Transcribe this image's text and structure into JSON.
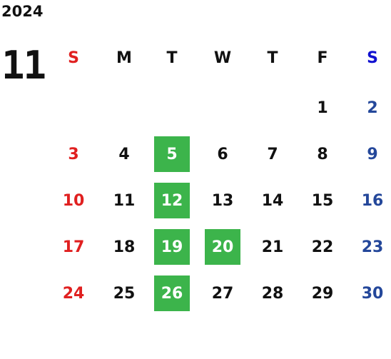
{
  "year": "2024",
  "month": "11",
  "weekdays": [
    "S",
    "M",
    "T",
    "W",
    "T",
    "F",
    "S"
  ],
  "weekday_colors": [
    "#e02020",
    "#111111",
    "#111111",
    "#111111",
    "#111111",
    "#111111",
    "#1010d0"
  ],
  "day_colors": [
    "#e02020",
    "#111111",
    "#111111",
    "#111111",
    "#111111",
    "#111111",
    "#24479a"
  ],
  "highlight_color": "#3cb44b",
  "weeks": [
    [
      null,
      null,
      null,
      null,
      null,
      {
        "day": "1"
      },
      {
        "day": "2"
      }
    ],
    [
      {
        "day": "3"
      },
      {
        "day": "4"
      },
      {
        "day": "5",
        "highlight": true
      },
      {
        "day": "6"
      },
      {
        "day": "7"
      },
      {
        "day": "8"
      },
      {
        "day": "9"
      }
    ],
    [
      {
        "day": "10"
      },
      {
        "day": "11"
      },
      {
        "day": "12",
        "highlight": true
      },
      {
        "day": "13"
      },
      {
        "day": "14"
      },
      {
        "day": "15"
      },
      {
        "day": "16"
      }
    ],
    [
      {
        "day": "17"
      },
      {
        "day": "18"
      },
      {
        "day": "19",
        "highlight": true
      },
      {
        "day": "20",
        "highlight": true
      },
      {
        "day": "21"
      },
      {
        "day": "22"
      },
      {
        "day": "23"
      }
    ],
    [
      {
        "day": "24"
      },
      {
        "day": "25"
      },
      {
        "day": "26",
        "highlight": true
      },
      {
        "day": "27"
      },
      {
        "day": "28"
      },
      {
        "day": "29"
      },
      {
        "day": "30"
      }
    ]
  ]
}
